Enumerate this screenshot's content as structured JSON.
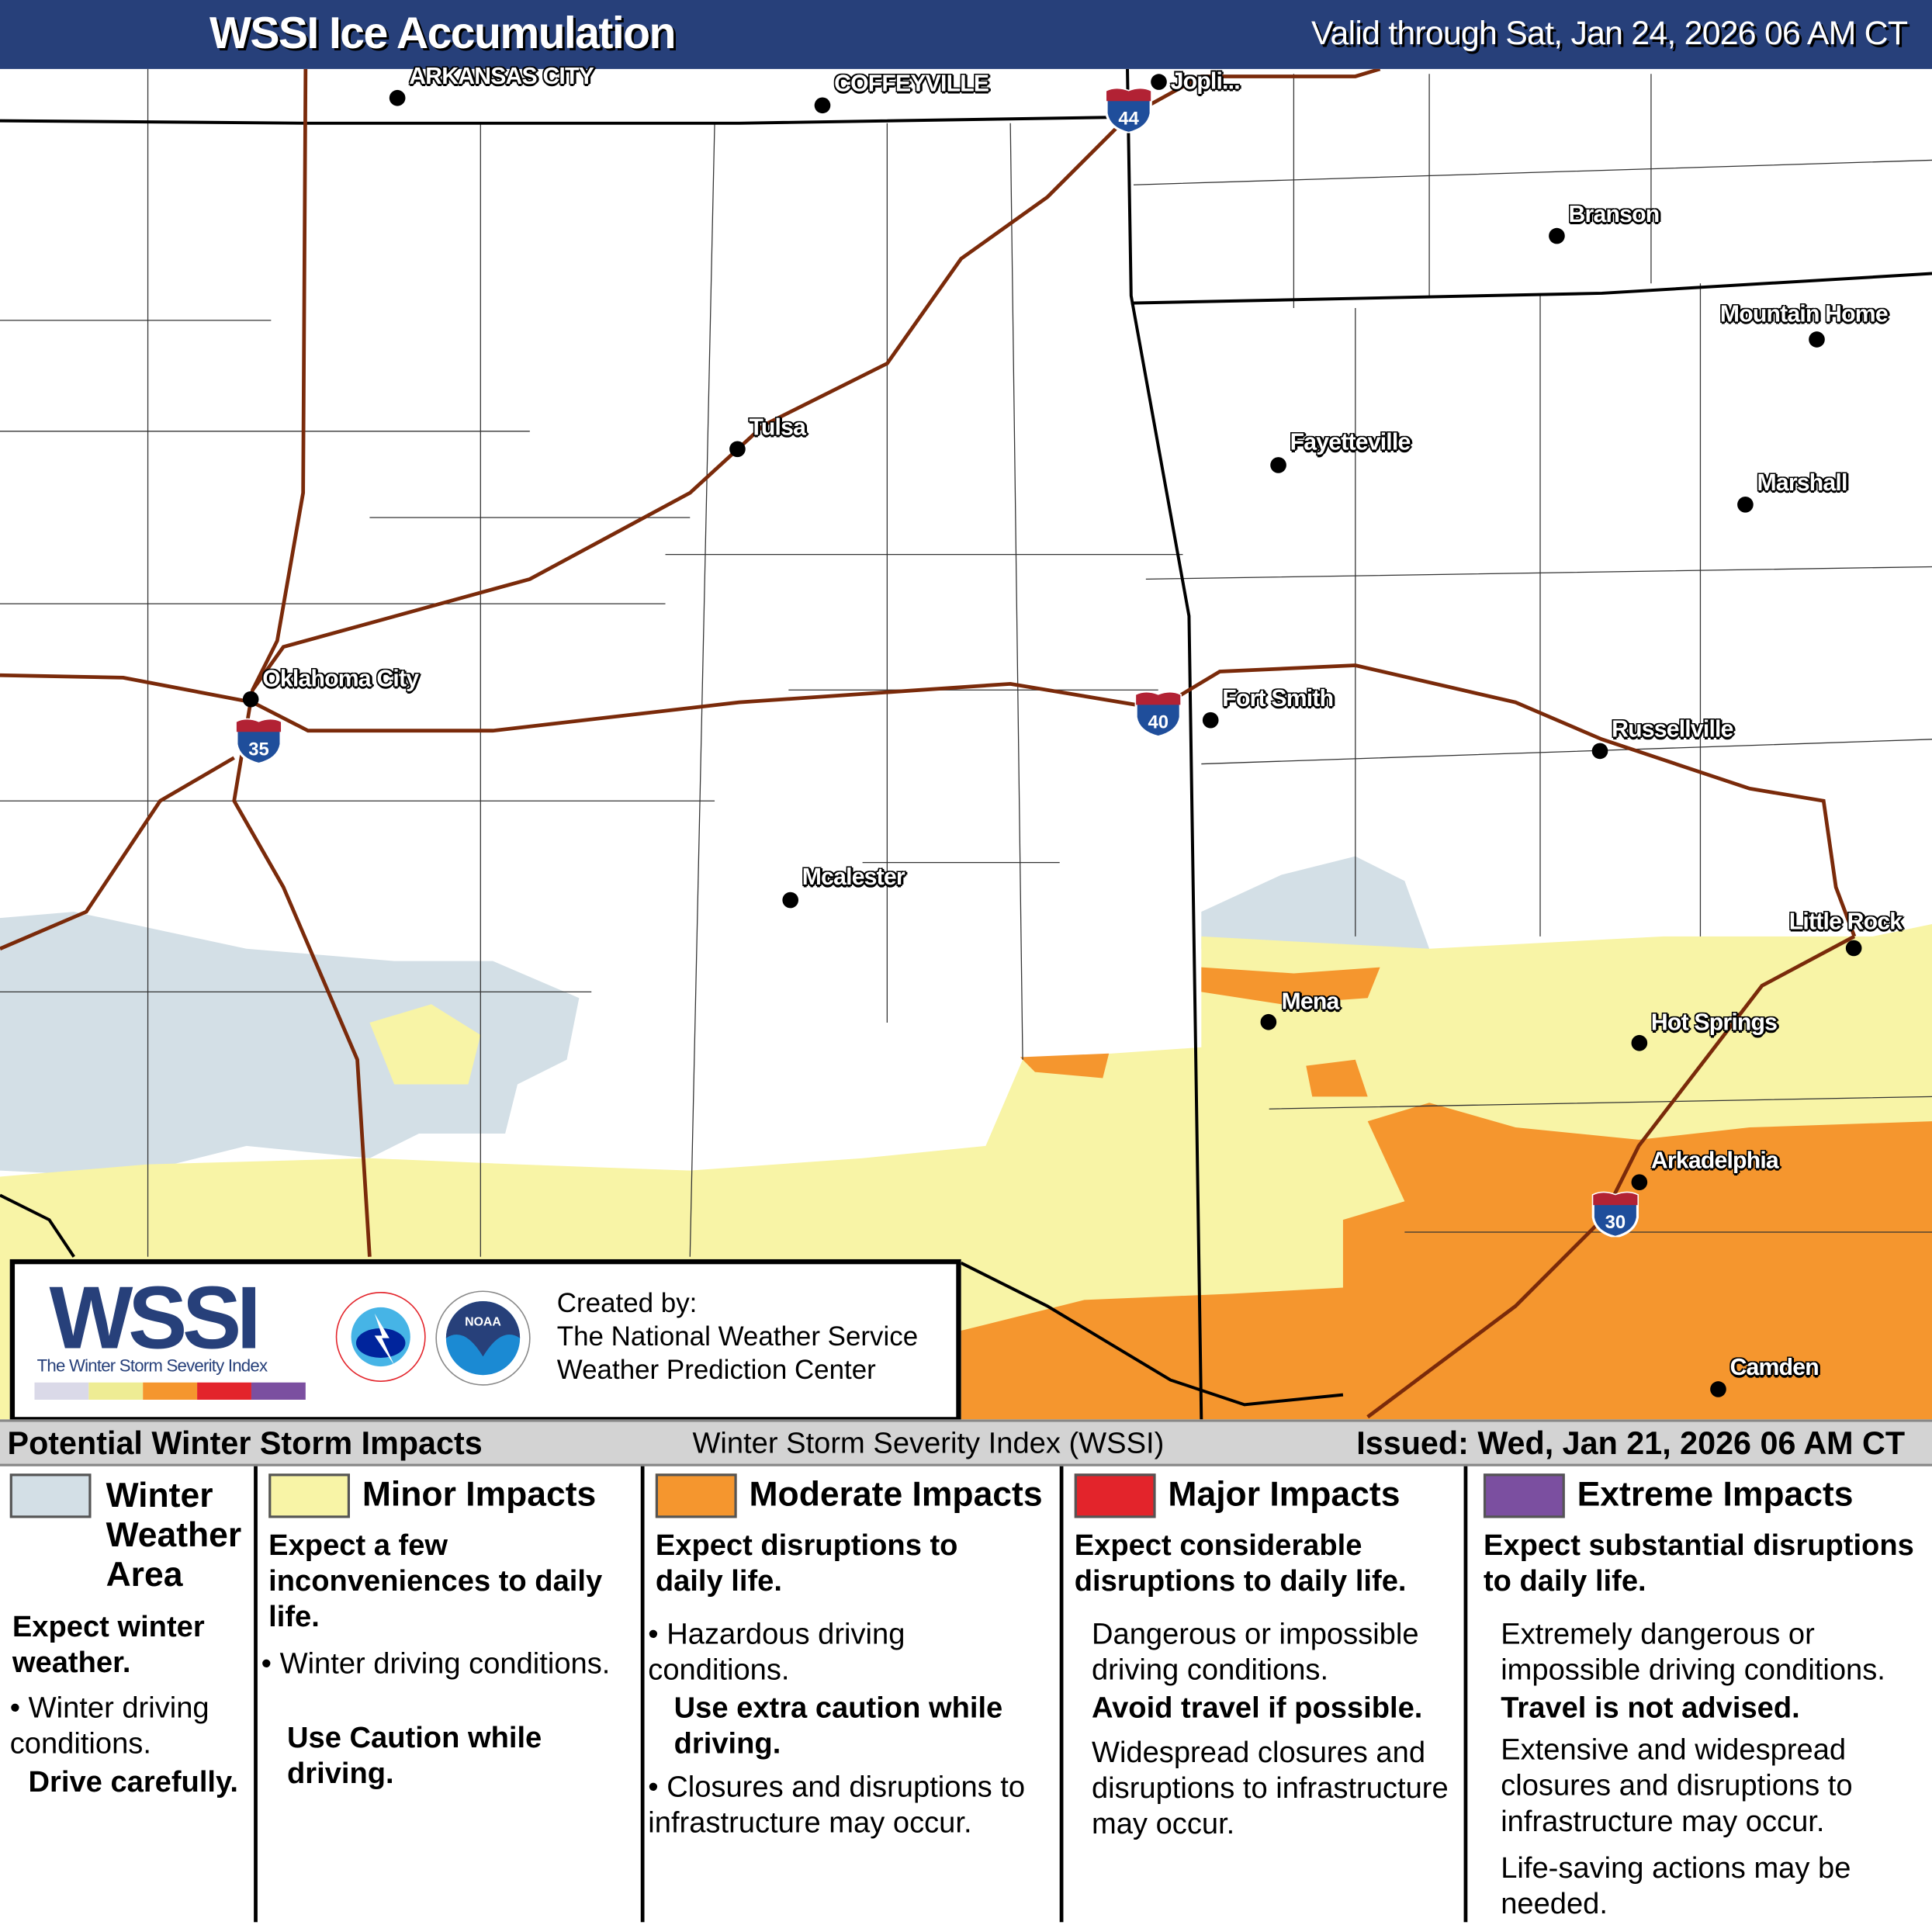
{
  "header": {
    "title": "WSSI Ice Accumulation",
    "valid": "Valid through Sat, Jan 24, 2026 06 AM CT"
  },
  "map": {
    "cities": [
      {
        "name": "ARKANSAS CITY"
      },
      {
        "name": "COFFEYVILLE"
      },
      {
        "name": "Jopli..."
      },
      {
        "name": "Branson"
      },
      {
        "name": "Mountain Home"
      },
      {
        "name": "Tulsa"
      },
      {
        "name": "Fayetteville"
      },
      {
        "name": "Marshall"
      },
      {
        "name": "Oklahoma City"
      },
      {
        "name": "Fort Smith"
      },
      {
        "name": "Russellville"
      },
      {
        "name": "Mcalester"
      },
      {
        "name": "Little Rock"
      },
      {
        "name": "Mena"
      },
      {
        "name": "Hot Springs"
      },
      {
        "name": "Arkadelphia"
      },
      {
        "name": "Camden"
      }
    ],
    "interstates": [
      "44",
      "35",
      "40",
      "30"
    ],
    "colors": {
      "winter_weather": "#d3dfe6",
      "minor": "#f8f4a6",
      "moderate": "#f5962e",
      "major": "#e3242b",
      "extreme": "#7b4fa0",
      "roads": "#7a2a0a",
      "header": "#27407a"
    }
  },
  "logo": {
    "wssi": "WSSI",
    "tm": "TM",
    "subtitle": "The Winter Storm Severity Index",
    "nws_ring": "NATIONAL WEATHER SERVICE",
    "noaa": "NOAA",
    "created_by": "Created by:",
    "org1": "The National Weather Service",
    "org2": "Weather Prediction Center"
  },
  "impacts_bar": {
    "left": "Potential Winter Storm Impacts",
    "center": "Winter Storm Severity Index (WSSI)",
    "right": "Issued: Wed, Jan 21, 2026 06 AM CT"
  },
  "legend": [
    {
      "category": "Winter Weather Area",
      "headline": "Expect winter weather.",
      "bullets": [
        "Winter driving conditions."
      ],
      "bold": "Drive carefully."
    },
    {
      "category": "Minor Impacts",
      "headline": "Expect a few inconveniences to daily life.",
      "bullets": [
        "Winter driving conditions."
      ],
      "bold": "Use Caution while driving."
    },
    {
      "category": "Moderate Impacts",
      "headline": "Expect disruptions to daily life.",
      "bullets": [
        "Hazardous driving conditions.",
        "Closures and disruptions to infrastructure may occur."
      ],
      "bold": "Use extra caution while driving."
    },
    {
      "category": "Major Impacts",
      "headline": "Expect considerable disruptions to daily life.",
      "p1": "Dangerous or impossible driving conditions.",
      "bold": "Avoid travel if possible.",
      "p2": "Widespread closures and disruptions to infrastructure may occur."
    },
    {
      "category": "Extreme Impacts",
      "headline": "Expect substantial disruptions to daily life.",
      "p1": "Extremely dangerous or impossible driving conditions.",
      "bold": "Travel is not advised.",
      "p2": "Extensive and widespread closures and disruptions to infrastructure may occur.",
      "p3": "Life-saving actions may be needed."
    }
  ]
}
